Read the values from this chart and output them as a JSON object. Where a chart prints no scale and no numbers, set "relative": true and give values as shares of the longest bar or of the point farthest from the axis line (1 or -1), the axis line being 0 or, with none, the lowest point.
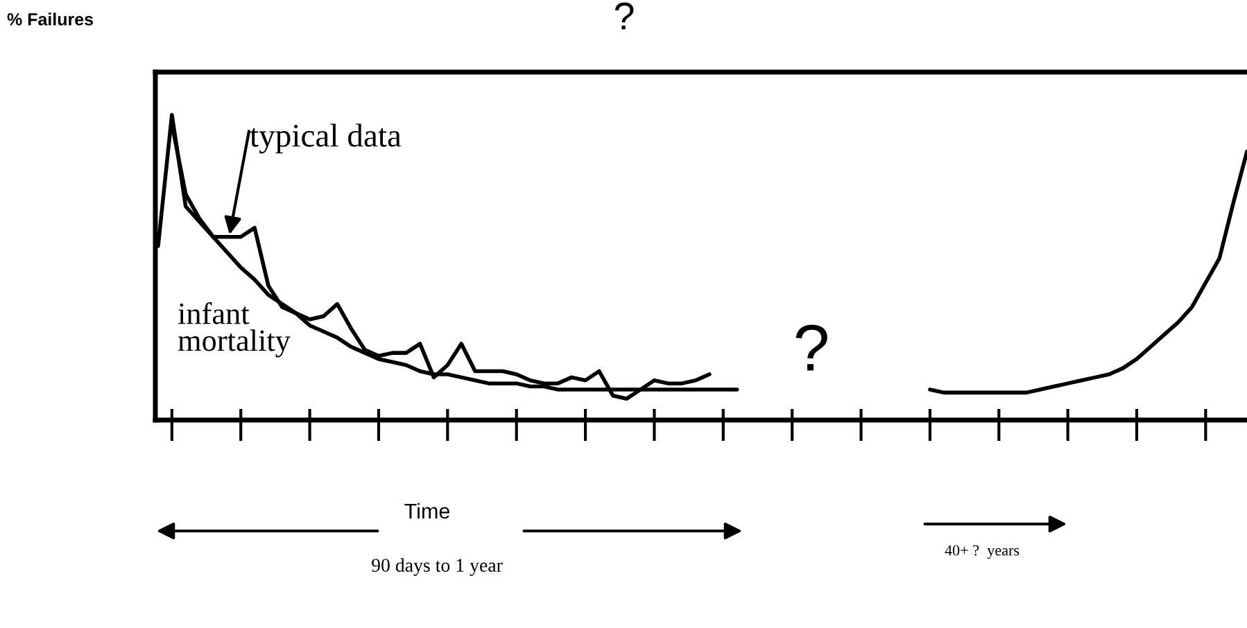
{
  "chart_data": {
    "type": "line",
    "relative": true,
    "title": "?",
    "categories": [
      null,
      null,
      null,
      null,
      null,
      null,
      null,
      null,
      null,
      null,
      null,
      null,
      null,
      null,
      null,
      null,
      null,
      null,
      null,
      null,
      null,
      null,
      null,
      null,
      null,
      null,
      null,
      null,
      null,
      null,
      null,
      null,
      null,
      null,
      null,
      null,
      null,
      null,
      null,
      null,
      null,
      null,
      null,
      null,
      null,
      null,
      null,
      null,
      null,
      null,
      null,
      null,
      null,
      null,
      null,
      null,
      null,
      null,
      null,
      null,
      null,
      null,
      null,
      null,
      null,
      null,
      null,
      null,
      null,
      null,
      null,
      null,
      null,
      null,
      null,
      null,
      null,
      null,
      null,
      null
    ],
    "series": [
      {
        "color": "#000000",
        "values": [
          0.57,
          1.0,
          0.7,
          0.65,
          0.6,
          0.6,
          0.6,
          0.63,
          0.44,
          0.37,
          0.35,
          0.33,
          0.34,
          0.38,
          0.3,
          0.23,
          0.21,
          0.22,
          0.22,
          0.25,
          0.14,
          0.18,
          0.25,
          0.16,
          0.16,
          0.16,
          0.15,
          0.13,
          0.12,
          0.12,
          0.14,
          0.13,
          0.16,
          0.08,
          0.07,
          0.1,
          0.13,
          0.12,
          0.12,
          0.13,
          0.15,
          null,
          null,
          null,
          null,
          null,
          null,
          null,
          null,
          null,
          null,
          null,
          null,
          null,
          null,
          null,
          null,
          null,
          null,
          null,
          null,
          null,
          null,
          null,
          null,
          null,
          null,
          null,
          null,
          null,
          null,
          null,
          null,
          null,
          null,
          null,
          null,
          null,
          null,
          null
        ]
      },
      {
        "color": "#000000",
        "values": [
          null,
          0.97,
          0.74,
          0.66,
          0.6,
          0.55,
          0.5,
          0.46,
          0.41,
          0.38,
          0.35,
          0.31,
          0.29,
          0.27,
          0.24,
          0.22,
          0.2,
          0.19,
          0.18,
          0.16,
          0.15,
          0.15,
          0.14,
          0.13,
          0.12,
          0.12,
          0.12,
          0.11,
          0.11,
          0.1,
          0.1,
          0.1,
          0.1,
          0.1,
          0.1,
          0.1,
          0.1,
          0.1,
          0.1,
          0.1,
          0.1,
          0.1,
          0.1,
          null,
          null,
          null,
          null,
          null,
          null,
          null,
          null,
          null,
          null,
          null,
          null,
          null,
          null,
          null,
          null,
          null,
          null,
          null,
          null,
          null,
          null,
          null,
          null,
          null,
          null,
          null,
          null,
          null,
          null,
          null,
          null,
          null,
          null,
          null,
          null,
          null
        ]
      },
      {
        "color": "#000000",
        "values": [
          null,
          null,
          null,
          null,
          null,
          null,
          null,
          null,
          null,
          null,
          null,
          null,
          null,
          null,
          null,
          null,
          null,
          null,
          null,
          null,
          null,
          null,
          null,
          null,
          null,
          null,
          null,
          null,
          null,
          null,
          null,
          null,
          null,
          null,
          null,
          null,
          null,
          null,
          null,
          null,
          null,
          null,
          null,
          null,
          null,
          null,
          null,
          null,
          null,
          null,
          null,
          null,
          null,
          null,
          null,
          null,
          0.1,
          0.09,
          0.09,
          0.09,
          0.09,
          0.09,
          0.09,
          0.09,
          0.1,
          0.11,
          0.12,
          0.13,
          0.14,
          0.15,
          0.17,
          0.2,
          0.24,
          0.28,
          0.32,
          0.37,
          0.45,
          0.53,
          0.71,
          0.88
        ]
      }
    ],
    "annotations": [
      "typical data",
      "infant\nmortality",
      "?",
      "Time",
      "90 days to 1 year",
      "40+ ?  years",
      "% Failures"
    ]
  }
}
